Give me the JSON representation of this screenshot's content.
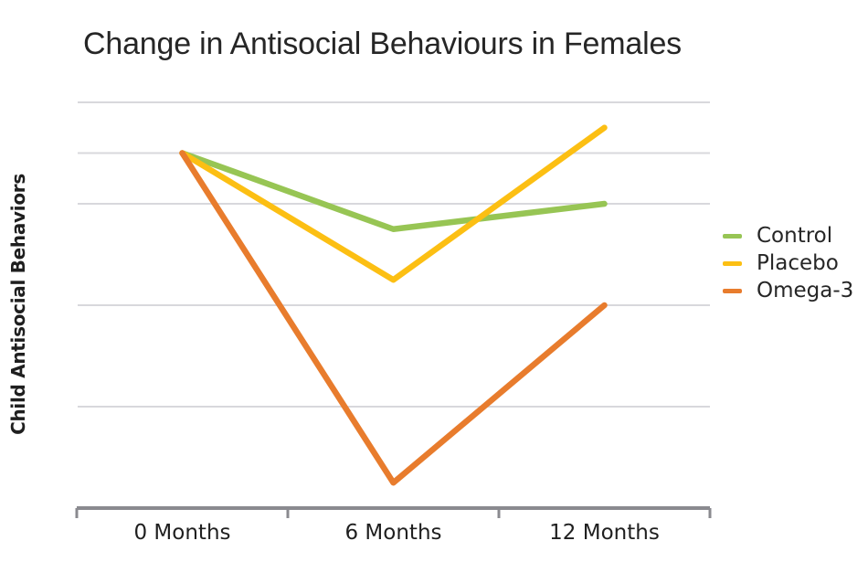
{
  "title": "Change in Antisocial Behaviours in Females",
  "y_axis_label": "Child Antisocial Behaviors",
  "x_labels": [
    "0 Months",
    "6 Months",
    "12 Months"
  ],
  "legend": [
    {
      "label": "Control",
      "color": "#97c554"
    },
    {
      "label": "Placebo",
      "color": "#fcbf13"
    },
    {
      "label": "Omega-3",
      "color": "#e87c2d"
    }
  ],
  "colors": {
    "gridline": "#d8d8dc",
    "axis": "#8a8a8f",
    "text": "#262626",
    "background": "#ffffff"
  },
  "chart_data": {
    "type": "line",
    "title": "Change in Antisocial Behaviours in Females",
    "xlabel": "",
    "ylabel": "Child Antisocial Behaviors",
    "categories": [
      "0 Months",
      "6 Months",
      "12 Months"
    ],
    "series": [
      {
        "name": "Control",
        "color": "#97c554",
        "values": [
          3.5,
          2.75,
          3.0
        ]
      },
      {
        "name": "Placebo",
        "color": "#fcbf13",
        "values": [
          3.5,
          2.25,
          3.75
        ]
      },
      {
        "name": "Omega-3",
        "color": "#e87c2d",
        "values": [
          3.5,
          0.25,
          2.0
        ]
      }
    ],
    "ylim": [
      0,
      4.2
    ],
    "gridline_values": [
      1,
      2,
      3,
      3.5,
      4
    ],
    "y_axis_tick_labels_visible": false,
    "grid": true,
    "legend_position": "right"
  }
}
